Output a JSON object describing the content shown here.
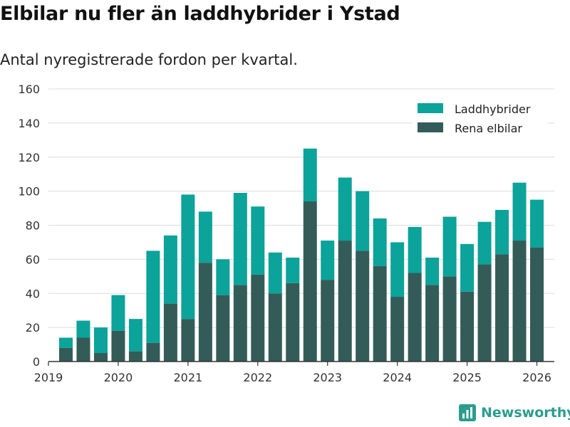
{
  "chart_data": {
    "type": "bar",
    "stacked": true,
    "title": "Elbilar nu fler än laddhybrider i Ystad",
    "subtitle": "Antal nyregistrerade fordon per kvartal.",
    "xlabel": "",
    "ylabel": "",
    "ylim": [
      0,
      160
    ],
    "yticks": [
      0,
      20,
      40,
      60,
      80,
      100,
      120,
      140,
      160
    ],
    "xlim": [
      2019,
      2026.25
    ],
    "xticks": [
      2019,
      2020,
      2021,
      2022,
      2023,
      2024,
      2025,
      2026
    ],
    "x": [
      2019.25,
      2019.5,
      2019.75,
      2020.0,
      2020.25,
      2020.5,
      2020.75,
      2021.0,
      2021.25,
      2021.5,
      2021.75,
      2022.0,
      2022.25,
      2022.5,
      2022.75,
      2023.0,
      2023.25,
      2023.5,
      2023.75,
      2024.0,
      2024.25,
      2024.5,
      2024.75,
      2025.0,
      2025.25,
      2025.5,
      2025.75,
      2026.0
    ],
    "grid": true,
    "legend_position": "top-right",
    "series": [
      {
        "name": "Rena elbilar",
        "color": "#335c58",
        "values": [
          8,
          14,
          5,
          18,
          6,
          11,
          34,
          25,
          58,
          39,
          45,
          51,
          40,
          46,
          94,
          48,
          71,
          65,
          56,
          38,
          52,
          45,
          50,
          41,
          57,
          63,
          71,
          67
        ]
      },
      {
        "name": "Laddhybrider",
        "color": "#0ba39a",
        "values": [
          6,
          10,
          15,
          21,
          19,
          54,
          40,
          73,
          30,
          21,
          54,
          40,
          24,
          15,
          31,
          23,
          37,
          35,
          28,
          32,
          27,
          16,
          35,
          28,
          25,
          26,
          34,
          28
        ]
      }
    ],
    "legend": [
      "Laddhybrider",
      "Rena elbilar"
    ]
  },
  "brand": {
    "name": "Newsworthy",
    "color": "#2a9d8f"
  },
  "colors": {
    "grid": "#dcdcdc",
    "axis": "#333333",
    "tick_text": "#333333"
  }
}
